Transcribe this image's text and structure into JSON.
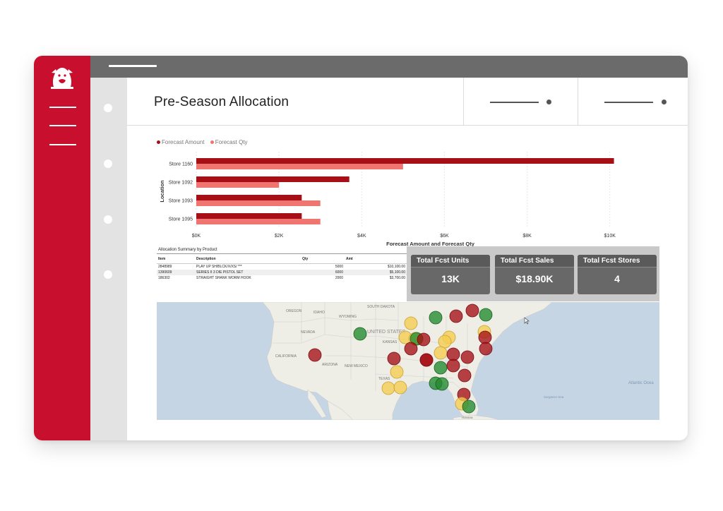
{
  "sidebar": {
    "logo": "bulldog-logo",
    "menu_icon": "hamburger-menu-icon"
  },
  "header": {
    "title": "Pre-Season Allocation",
    "filters": [
      "filter-slicer-1",
      "filter-slicer-2"
    ]
  },
  "chart_data": {
    "type": "bar",
    "orientation": "horizontal",
    "title": "",
    "categories": [
      "Store 1160",
      "Store 1092",
      "Store 1093",
      "Store 1095"
    ],
    "series": [
      {
        "name": "Forecast Amount",
        "values": [
          10100,
          3700,
          2550,
          2550
        ]
      },
      {
        "name": "Forecast Qty",
        "values": [
          5000,
          2000,
          3000,
          3000
        ]
      }
    ],
    "xlabel": "Forecast Amount and Forecast Qty",
    "ylabel": "Location",
    "xlim": [
      0,
      10500
    ],
    "x_ticks": [
      0,
      2000,
      4000,
      6000,
      8000,
      10000
    ],
    "x_tick_labels": [
      "$0K",
      "$2K",
      "$4K",
      "$6K",
      "$8K",
      "$10K"
    ],
    "grid": true,
    "legend_position": "top-left",
    "colors": [
      "#a50f15",
      "#f07470"
    ]
  },
  "table": {
    "title": "Allocation Summary by Product",
    "columns": [
      "Item",
      "Description",
      "Qty",
      "Amt"
    ],
    "rows": [
      [
        "2848989",
        "PLAY UP SH/BLCK/X/XS/ ***",
        "5000",
        "$10,100.00"
      ],
      [
        "1390609",
        "SERIES II 3 DIE PISTOL SET",
        "6000",
        "$5,100.00"
      ],
      [
        "186302",
        "STRAIGHT SHANK WORM HOOK",
        "2000",
        "$3,700.00"
      ]
    ]
  },
  "kpis": [
    {
      "label": "Total Fcst Units",
      "value": "13K"
    },
    {
      "label": "Total Fcst Sales",
      "value": "$18.90K"
    },
    {
      "label": "Total Fcst Stores",
      "value": "4"
    }
  ],
  "map": {
    "labels": {
      "oregon": "OREGON",
      "idaho": "IDAHO",
      "wyoming": "WYOMING",
      "south_dakota": "SOUTH DAKOTA",
      "united_states": "UNITED STATES",
      "nevada": "NEVADA",
      "kansas": "KANSAS",
      "california": "CALIFORNIA",
      "arizona": "ARIZONA",
      "new_mexico": "NEW MEXICO",
      "texas": "TEXAS",
      "atlantic": "Atlantic Ocea",
      "sargasso": "Sargasso Sea",
      "havana": "Havana"
    },
    "marker_colors": {
      "red": "#a50f15",
      "green": "#238b2e",
      "yellow": "#f5cd4f"
    }
  }
}
